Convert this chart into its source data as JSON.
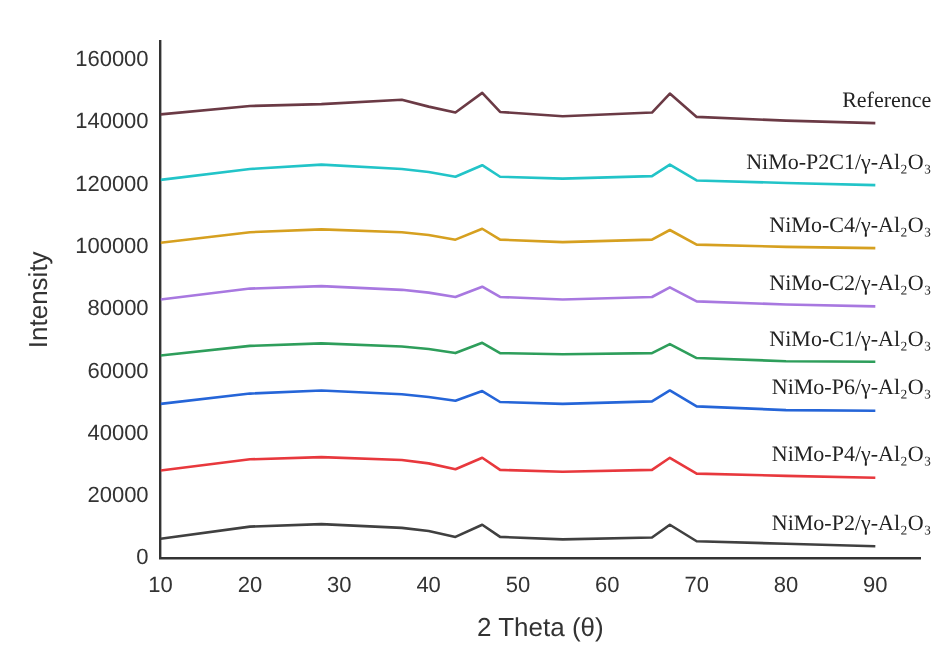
{
  "chart_data": {
    "type": "line",
    "xlabel": "2 Theta (θ)",
    "ylabel": "Intensity",
    "x": [
      10,
      20,
      28,
      37,
      40,
      43,
      46,
      48,
      55,
      65,
      67,
      70,
      80,
      90
    ],
    "xlim": [
      10,
      95
    ],
    "xticks": [
      10,
      20,
      30,
      40,
      50,
      60,
      70,
      80,
      90
    ],
    "ylim": [
      0,
      166000
    ],
    "yticks": [
      0,
      20000,
      40000,
      60000,
      80000,
      100000,
      120000,
      140000,
      160000
    ],
    "grid": false,
    "legend": false,
    "marker": "none",
    "line_style": "solid",
    "series": [
      {
        "name": "Reference",
        "color": "#6b3a45",
        "values": [
          142500,
          145200,
          145800,
          147200,
          145000,
          143100,
          149400,
          143300,
          141900,
          143100,
          149200,
          141700,
          140500,
          139700
        ]
      },
      {
        "name": "NiMo-P2C1/γ-Al₂O₃",
        "color": "#22c4c8",
        "values": [
          121500,
          125000,
          126400,
          125000,
          124000,
          122500,
          126200,
          122500,
          121900,
          122700,
          126400,
          121300,
          120500,
          119800
        ]
      },
      {
        "name": "NiMo-C4/γ-Al₂O₃",
        "color": "#d6a020",
        "values": [
          101300,
          104700,
          105600,
          104700,
          103800,
          102300,
          105800,
          102300,
          101500,
          102300,
          105400,
          100700,
          100000,
          99600
        ]
      },
      {
        "name": "NiMo-C2/γ-Al₂O₃",
        "color": "#a878e0",
        "values": [
          83100,
          86600,
          87400,
          86200,
          85300,
          83900,
          87200,
          83900,
          83100,
          83900,
          87000,
          82500,
          81500,
          80900
        ]
      },
      {
        "name": "NiMo-C1/γ-Al₂O₃",
        "color": "#2e9e5b",
        "values": [
          65100,
          68200,
          69000,
          68000,
          67200,
          65900,
          69200,
          65900,
          65500,
          65900,
          68800,
          64300,
          63300,
          63100
        ]
      },
      {
        "name": "NiMo-P6/γ-Al₂O₃",
        "color": "#2565d8",
        "values": [
          49600,
          52900,
          53900,
          52700,
          51800,
          50600,
          53700,
          50200,
          49600,
          50400,
          53900,
          48800,
          47600,
          47400
        ]
      },
      {
        "name": "NiMo-P4/γ-Al₂O₃",
        "color": "#e8383d",
        "values": [
          28200,
          31800,
          32500,
          31600,
          30500,
          28600,
          32300,
          28400,
          27800,
          28400,
          32300,
          27200,
          26500,
          25900
        ]
      },
      {
        "name": "NiMo-P2/γ-Al₂O₃",
        "color": "#404040",
        "values": [
          6300,
          10200,
          11000,
          9800,
          8800,
          6900,
          10800,
          6900,
          6100,
          6700,
          10800,
          5500,
          4700,
          3900
        ]
      }
    ]
  }
}
